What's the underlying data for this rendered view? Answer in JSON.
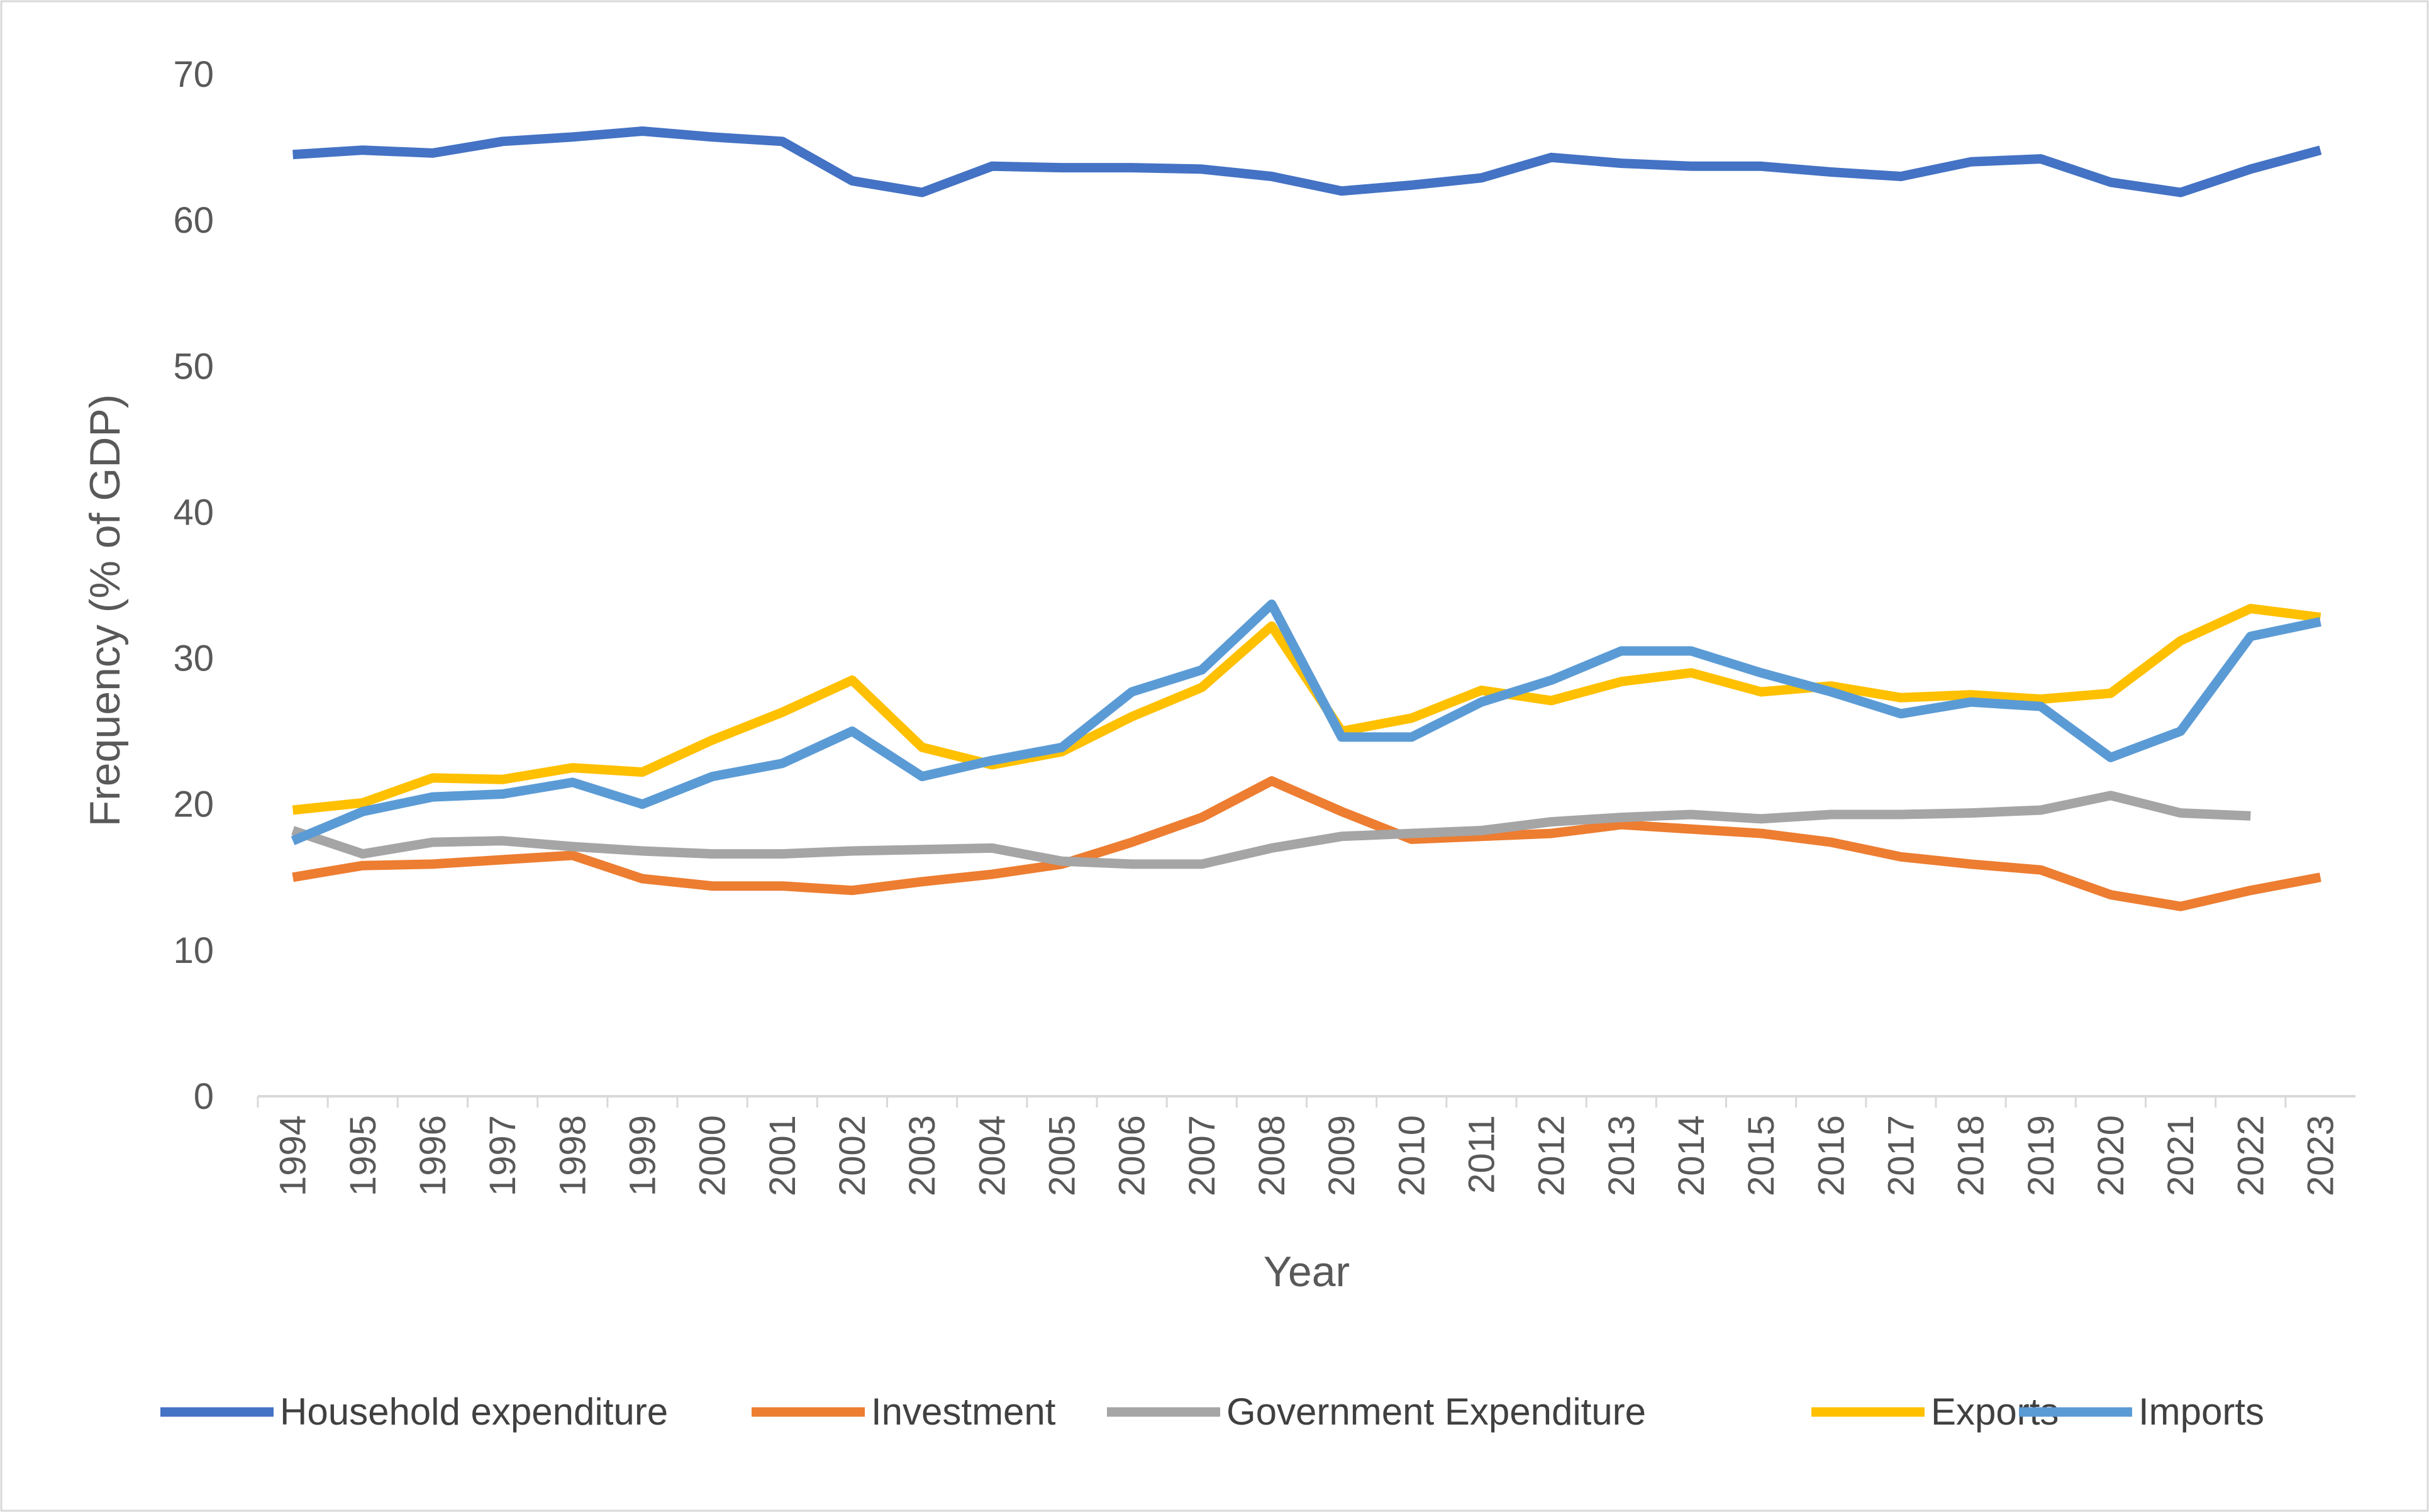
{
  "chart_data": {
    "type": "line",
    "title": "",
    "xlabel": "Year",
    "ylabel": "Frequency (% of GDP)",
    "ylim": [
      0,
      70
    ],
    "yticks": [
      0,
      10,
      20,
      30,
      40,
      50,
      60,
      70
    ],
    "grid": false,
    "legend_position": "bottom",
    "categories": [
      "1994",
      "1995",
      "1996",
      "1997",
      "1998",
      "1999",
      "2000",
      "2001",
      "2002",
      "2003",
      "2004",
      "2005",
      "2006",
      "2007",
      "2008",
      "2009",
      "2010",
      "2011",
      "2012",
      "2013",
      "2014",
      "2015",
      "2016",
      "2017",
      "2018",
      "2019",
      "2020",
      "2021",
      "2022",
      "2023"
    ],
    "series": [
      {
        "name": "Household expenditure",
        "color": "#4472c4",
        "values": [
          64.5,
          64.8,
          64.6,
          65.4,
          65.7,
          66.1,
          65.7,
          65.4,
          62.7,
          61.9,
          63.7,
          63.6,
          63.6,
          63.5,
          63.0,
          62.0,
          62.4,
          62.9,
          64.3,
          63.9,
          63.7,
          63.7,
          63.3,
          63.0,
          64.0,
          64.2,
          62.6,
          61.9,
          63.5,
          64.8
        ]
      },
      {
        "name": "Investment",
        "color": "#ed7d31",
        "values": [
          15.0,
          15.8,
          15.9,
          16.2,
          16.5,
          14.9,
          14.4,
          14.4,
          14.1,
          14.7,
          15.2,
          15.9,
          17.4,
          19.1,
          21.6,
          19.5,
          17.6,
          17.8,
          18.0,
          18.6,
          18.3,
          18.0,
          17.4,
          16.4,
          15.9,
          15.5,
          13.8,
          13.0,
          14.1,
          15.0
        ]
      },
      {
        "name": "Government Expenditure",
        "color": "#a5a5a5",
        "values": [
          18.2,
          16.6,
          17.4,
          17.5,
          17.1,
          16.8,
          16.6,
          16.6,
          16.8,
          16.9,
          17.0,
          16.1,
          15.9,
          15.9,
          17.0,
          17.8,
          18.0,
          18.2,
          18.8,
          19.1,
          19.3,
          19.0,
          19.3,
          19.3,
          19.4,
          19.6,
          20.6,
          19.4,
          19.2,
          null
        ]
      },
      {
        "name": "Exports",
        "color": "#ffc000",
        "values": [
          19.6,
          20.1,
          21.8,
          21.7,
          22.5,
          22.2,
          24.4,
          26.3,
          28.5,
          23.9,
          22.7,
          23.6,
          26.0,
          28.0,
          32.2,
          25.0,
          25.9,
          27.8,
          27.1,
          28.4,
          29.0,
          27.7,
          28.1,
          27.3,
          27.5,
          27.2,
          27.6,
          31.2,
          33.4,
          32.8
        ]
      },
      {
        "name": "Imports",
        "color": "#5b9bd5",
        "values": [
          17.5,
          19.5,
          20.5,
          20.7,
          21.5,
          20.0,
          21.9,
          22.8,
          25.0,
          21.9,
          23.0,
          23.9,
          27.7,
          29.2,
          33.7,
          24.6,
          24.6,
          27.0,
          28.5,
          30.5,
          30.5,
          29.0,
          27.7,
          26.2,
          27.0,
          26.7,
          23.2,
          25.0,
          31.5,
          32.5
        ]
      }
    ]
  }
}
